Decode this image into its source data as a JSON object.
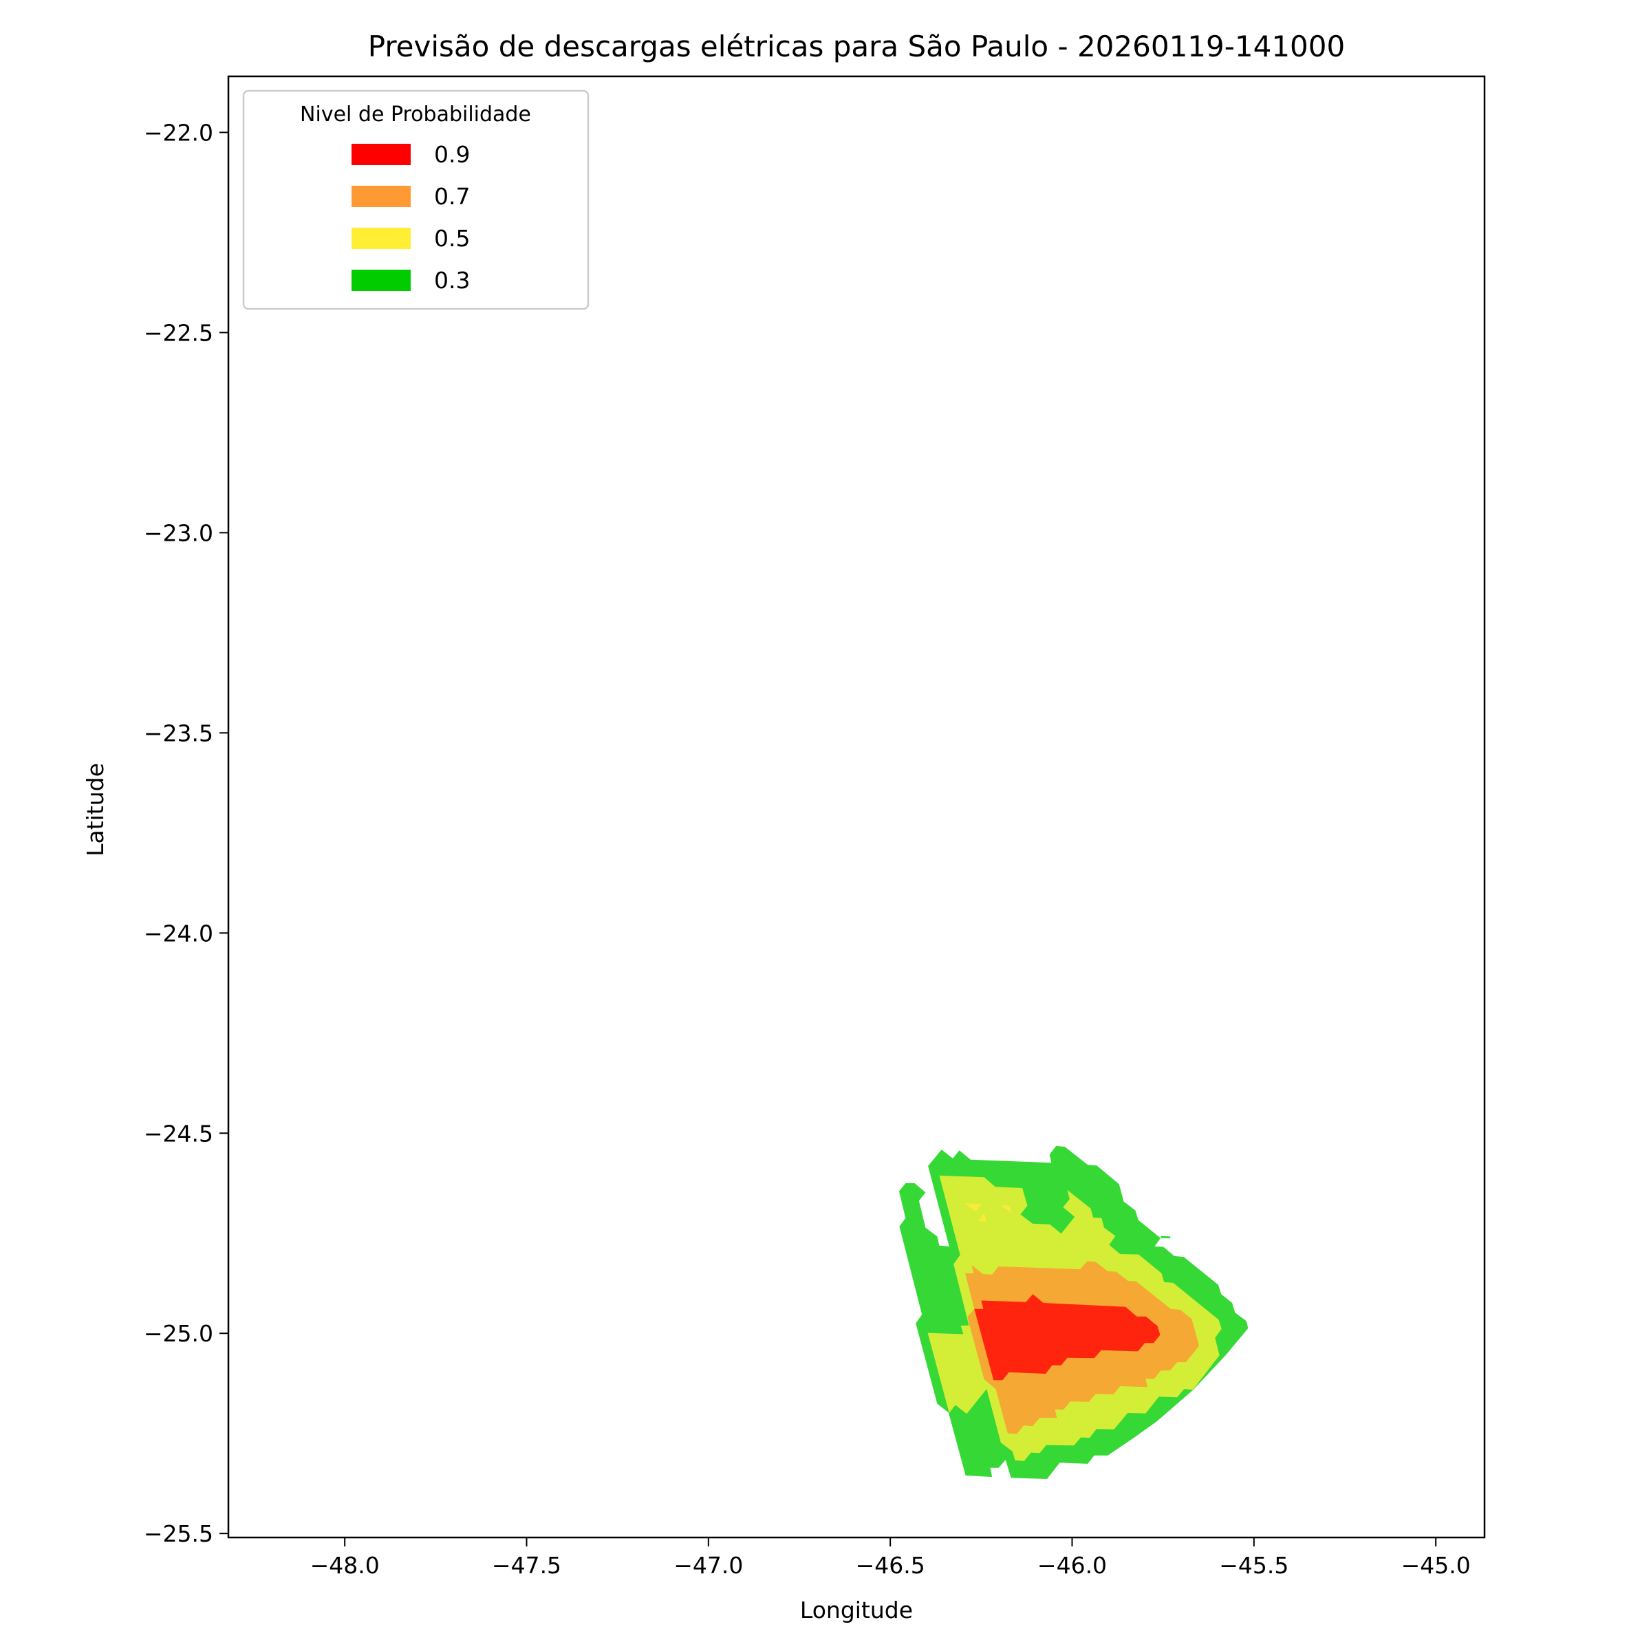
{
  "chart_data": {
    "type": "contour",
    "title": "Previsão de descargas elétricas para São Paulo - 20260119-141000",
    "xlabel": "Longitude",
    "ylabel": "Latitude",
    "xlim": [
      -48.32,
      -44.866
    ],
    "ylim": [
      -25.51,
      -21.86
    ],
    "xticks": [
      -48.0,
      -47.5,
      -47.0,
      -46.5,
      -46.0,
      -45.5,
      -45.0
    ],
    "xtick_labels": [
      "−48.0",
      "−47.5",
      "−47.0",
      "−46.5",
      "−46.0",
      "−45.5",
      "−45.0"
    ],
    "yticks": [
      -22.0,
      -22.5,
      -23.0,
      -23.5,
      -24.0,
      -24.5,
      -25.0,
      -25.5
    ],
    "ytick_labels": [
      "−22.0",
      "−22.5",
      "−23.0",
      "−23.5",
      "−24.0",
      "−24.5",
      "−25.0",
      "−25.5"
    ],
    "legend": {
      "title": "Nivel de Probabilidade",
      "placement": "top-left",
      "entries": [
        {
          "label": "0.9",
          "color": "#ff0000"
        },
        {
          "label": "0.7",
          "color": "#ff9933"
        },
        {
          "label": "0.5",
          "color": "#ffee33"
        },
        {
          "label": "0.3",
          "color": "#00cc00"
        }
      ]
    },
    "regions": [
      {
        "level": 0.3,
        "color": "#36d836",
        "polygons": [
          [
            [
              -46.396,
              -24.582
            ],
            [
              -46.359,
              -24.541
            ],
            [
              -46.328,
              -24.563
            ],
            [
              -46.31,
              -24.543
            ],
            [
              -46.279,
              -24.566
            ],
            [
              -46.057,
              -24.574
            ],
            [
              -46.062,
              -24.553
            ],
            [
              -46.044,
              -24.532
            ],
            [
              -46.02,
              -24.534
            ],
            [
              -45.957,
              -24.579
            ],
            [
              -45.932,
              -24.581
            ],
            [
              -45.871,
              -24.627
            ],
            [
              -45.858,
              -24.671
            ],
            [
              -45.826,
              -24.693
            ],
            [
              -45.818,
              -24.717
            ],
            [
              -45.757,
              -24.762
            ],
            [
              -45.773,
              -24.783
            ],
            [
              -45.749,
              -24.784
            ],
            [
              -45.719,
              -24.807
            ],
            [
              -45.693,
              -24.809
            ],
            [
              -45.598,
              -24.879
            ],
            [
              -45.59,
              -24.902
            ],
            [
              -45.56,
              -24.924
            ],
            [
              -45.552,
              -24.948
            ],
            [
              -45.521,
              -24.969
            ],
            [
              -45.516,
              -24.987
            ],
            [
              -45.577,
              -25.054
            ],
            [
              -45.668,
              -25.142
            ],
            [
              -45.766,
              -25.219
            ],
            [
              -45.827,
              -25.259
            ],
            [
              -45.902,
              -25.305
            ],
            [
              -45.939,
              -25.305
            ],
            [
              -45.957,
              -25.326
            ],
            [
              -46.034,
              -25.323
            ],
            [
              -46.069,
              -25.364
            ],
            [
              -46.168,
              -25.361
            ],
            [
              -46.183,
              -25.316
            ],
            [
              -46.202,
              -25.336
            ],
            [
              -46.225,
              -25.336
            ],
            [
              -46.22,
              -25.359
            ],
            [
              -46.293,
              -25.355
            ],
            [
              -46.34,
              -25.198
            ],
            [
              -46.371,
              -25.176
            ],
            [
              -46.43,
              -24.975
            ],
            [
              -46.413,
              -24.953
            ],
            [
              -46.475,
              -24.733
            ],
            [
              -46.458,
              -24.712
            ],
            [
              -46.476,
              -24.645
            ],
            [
              -46.458,
              -24.625
            ],
            [
              -46.433,
              -24.625
            ],
            [
              -46.403,
              -24.648
            ],
            [
              -46.421,
              -24.669
            ],
            [
              -46.403,
              -24.736
            ],
            [
              -46.371,
              -24.758
            ],
            [
              -46.365,
              -24.781
            ],
            [
              -46.338,
              -24.783
            ]
          ],
          [
            [
              -45.756,
              -24.757
            ],
            [
              -45.73,
              -24.758
            ],
            [
              -45.73,
              -24.763
            ],
            [
              -45.756,
              -24.762
            ]
          ]
        ]
      },
      {
        "level": 0.5,
        "color": "#d4ed37",
        "polygons": [
          [
            [
              -46.365,
              -24.606
            ],
            [
              -46.242,
              -24.61
            ],
            [
              -46.211,
              -24.634
            ],
            [
              -46.137,
              -24.637
            ],
            [
              -46.123,
              -24.681
            ],
            [
              -46.142,
              -24.703
            ],
            [
              -46.109,
              -24.726
            ],
            [
              -46.061,
              -24.728
            ],
            [
              -46.03,
              -24.751
            ],
            [
              -45.993,
              -24.709
            ],
            [
              -46.025,
              -24.685
            ],
            [
              -46.007,
              -24.665
            ],
            [
              -46.013,
              -24.642
            ],
            [
              -45.949,
              -24.688
            ],
            [
              -45.942,
              -24.711
            ],
            [
              -45.919,
              -24.712
            ],
            [
              -45.912,
              -24.736
            ],
            [
              -45.881,
              -24.757
            ],
            [
              -45.898,
              -24.779
            ],
            [
              -45.868,
              -24.802
            ],
            [
              -45.817,
              -24.803
            ],
            [
              -45.754,
              -24.85
            ],
            [
              -45.747,
              -24.872
            ],
            [
              -45.722,
              -24.874
            ],
            [
              -45.597,
              -24.966
            ],
            [
              -45.589,
              -24.989
            ],
            [
              -45.607,
              -25.011
            ],
            [
              -45.595,
              -25.055
            ],
            [
              -45.668,
              -25.141
            ],
            [
              -45.692,
              -25.139
            ],
            [
              -45.711,
              -25.16
            ],
            [
              -45.761,
              -25.158
            ],
            [
              -45.798,
              -25.2
            ],
            [
              -45.847,
              -25.199
            ],
            [
              -45.885,
              -25.24
            ],
            [
              -45.933,
              -25.239
            ],
            [
              -45.952,
              -25.261
            ],
            [
              -45.976,
              -25.26
            ],
            [
              -45.995,
              -25.28
            ],
            [
              -46.071,
              -25.279
            ],
            [
              -46.089,
              -25.299
            ],
            [
              -46.113,
              -25.298
            ],
            [
              -46.132,
              -25.319
            ],
            [
              -46.157,
              -25.317
            ],
            [
              -46.164,
              -25.295
            ],
            [
              -46.196,
              -25.273
            ],
            [
              -46.235,
              -25.139
            ],
            [
              -46.29,
              -25.201
            ],
            [
              -46.321,
              -25.179
            ],
            [
              -46.338,
              -25.199
            ],
            [
              -46.397,
              -24.999
            ],
            [
              -46.299,
              -25.002
            ],
            [
              -46.306,
              -24.981
            ],
            [
              -46.284,
              -24.98
            ],
            [
              -46.326,
              -24.827
            ],
            [
              -46.308,
              -24.804
            ]
          ]
        ]
      },
      {
        "level": 0.5,
        "color": "#f7ec37",
        "polygons": [
          [
            [
              -46.296,
              -24.675
            ],
            [
              -46.249,
              -24.677
            ],
            [
              -46.265,
              -24.696
            ]
          ],
          [
            [
              -46.258,
              -24.72
            ],
            [
              -46.242,
              -24.7
            ],
            [
              -46.235,
              -24.721
            ]
          ],
          [
            [
              -46.196,
              -24.68
            ],
            [
              -46.172,
              -24.681
            ],
            [
              -46.166,
              -24.7
            ]
          ]
        ]
      },
      {
        "level": 0.7,
        "color": "#f5a833",
        "polygons": [
          [
            [
              -46.294,
              -24.85
            ],
            [
              -46.271,
              -24.85
            ],
            [
              -46.276,
              -24.83
            ],
            [
              -46.245,
              -24.852
            ],
            [
              -46.22,
              -24.853
            ],
            [
              -46.203,
              -24.833
            ],
            [
              -45.978,
              -24.84
            ],
            [
              -45.959,
              -24.82
            ],
            [
              -45.936,
              -24.821
            ],
            [
              -45.902,
              -24.845
            ],
            [
              -45.879,
              -24.846
            ],
            [
              -45.846,
              -24.869
            ],
            [
              -45.824,
              -24.87
            ],
            [
              -45.729,
              -24.939
            ],
            [
              -45.703,
              -24.941
            ],
            [
              -45.671,
              -24.964
            ],
            [
              -45.651,
              -25.031
            ],
            [
              -45.687,
              -25.072
            ],
            [
              -45.711,
              -25.072
            ],
            [
              -45.731,
              -25.093
            ],
            [
              -45.756,
              -25.093
            ],
            [
              -45.775,
              -25.114
            ],
            [
              -45.798,
              -25.113
            ],
            [
              -45.793,
              -25.134
            ],
            [
              -45.868,
              -25.132
            ],
            [
              -45.886,
              -25.152
            ],
            [
              -45.935,
              -25.151
            ],
            [
              -45.954,
              -25.171
            ],
            [
              -46.005,
              -25.17
            ],
            [
              -46.024,
              -25.191
            ],
            [
              -46.047,
              -25.19
            ],
            [
              -46.042,
              -25.211
            ],
            [
              -46.089,
              -25.211
            ],
            [
              -46.109,
              -25.232
            ],
            [
              -46.133,
              -25.23
            ],
            [
              -46.152,
              -25.251
            ],
            [
              -46.177,
              -25.25
            ],
            [
              -46.21,
              -25.139
            ],
            [
              -46.242,
              -25.115
            ],
            [
              -46.288,
              -24.959
            ],
            [
              -46.269,
              -24.939
            ]
          ]
        ]
      },
      {
        "level": 0.9,
        "color": "#ff240d",
        "polygons": [
          [
            [
              -46.25,
              -24.918
            ],
            [
              -46.127,
              -24.922
            ],
            [
              -46.108,
              -24.902
            ],
            [
              -46.079,
              -24.924
            ],
            [
              -45.853,
              -24.934
            ],
            [
              -45.822,
              -24.958
            ],
            [
              -45.797,
              -24.958
            ],
            [
              -45.765,
              -24.982
            ],
            [
              -45.758,
              -25.004
            ],
            [
              -45.776,
              -25.024
            ],
            [
              -45.8,
              -25.024
            ],
            [
              -45.819,
              -25.045
            ],
            [
              -45.92,
              -25.042
            ],
            [
              -45.939,
              -25.062
            ],
            [
              -46.013,
              -25.061
            ],
            [
              -46.03,
              -25.08
            ],
            [
              -46.055,
              -25.08
            ],
            [
              -46.073,
              -25.101
            ],
            [
              -46.174,
              -25.097
            ],
            [
              -46.191,
              -25.117
            ],
            [
              -46.216,
              -25.117
            ],
            [
              -46.269,
              -24.939
            ],
            [
              -46.244,
              -24.939
            ]
          ]
        ]
      }
    ]
  }
}
